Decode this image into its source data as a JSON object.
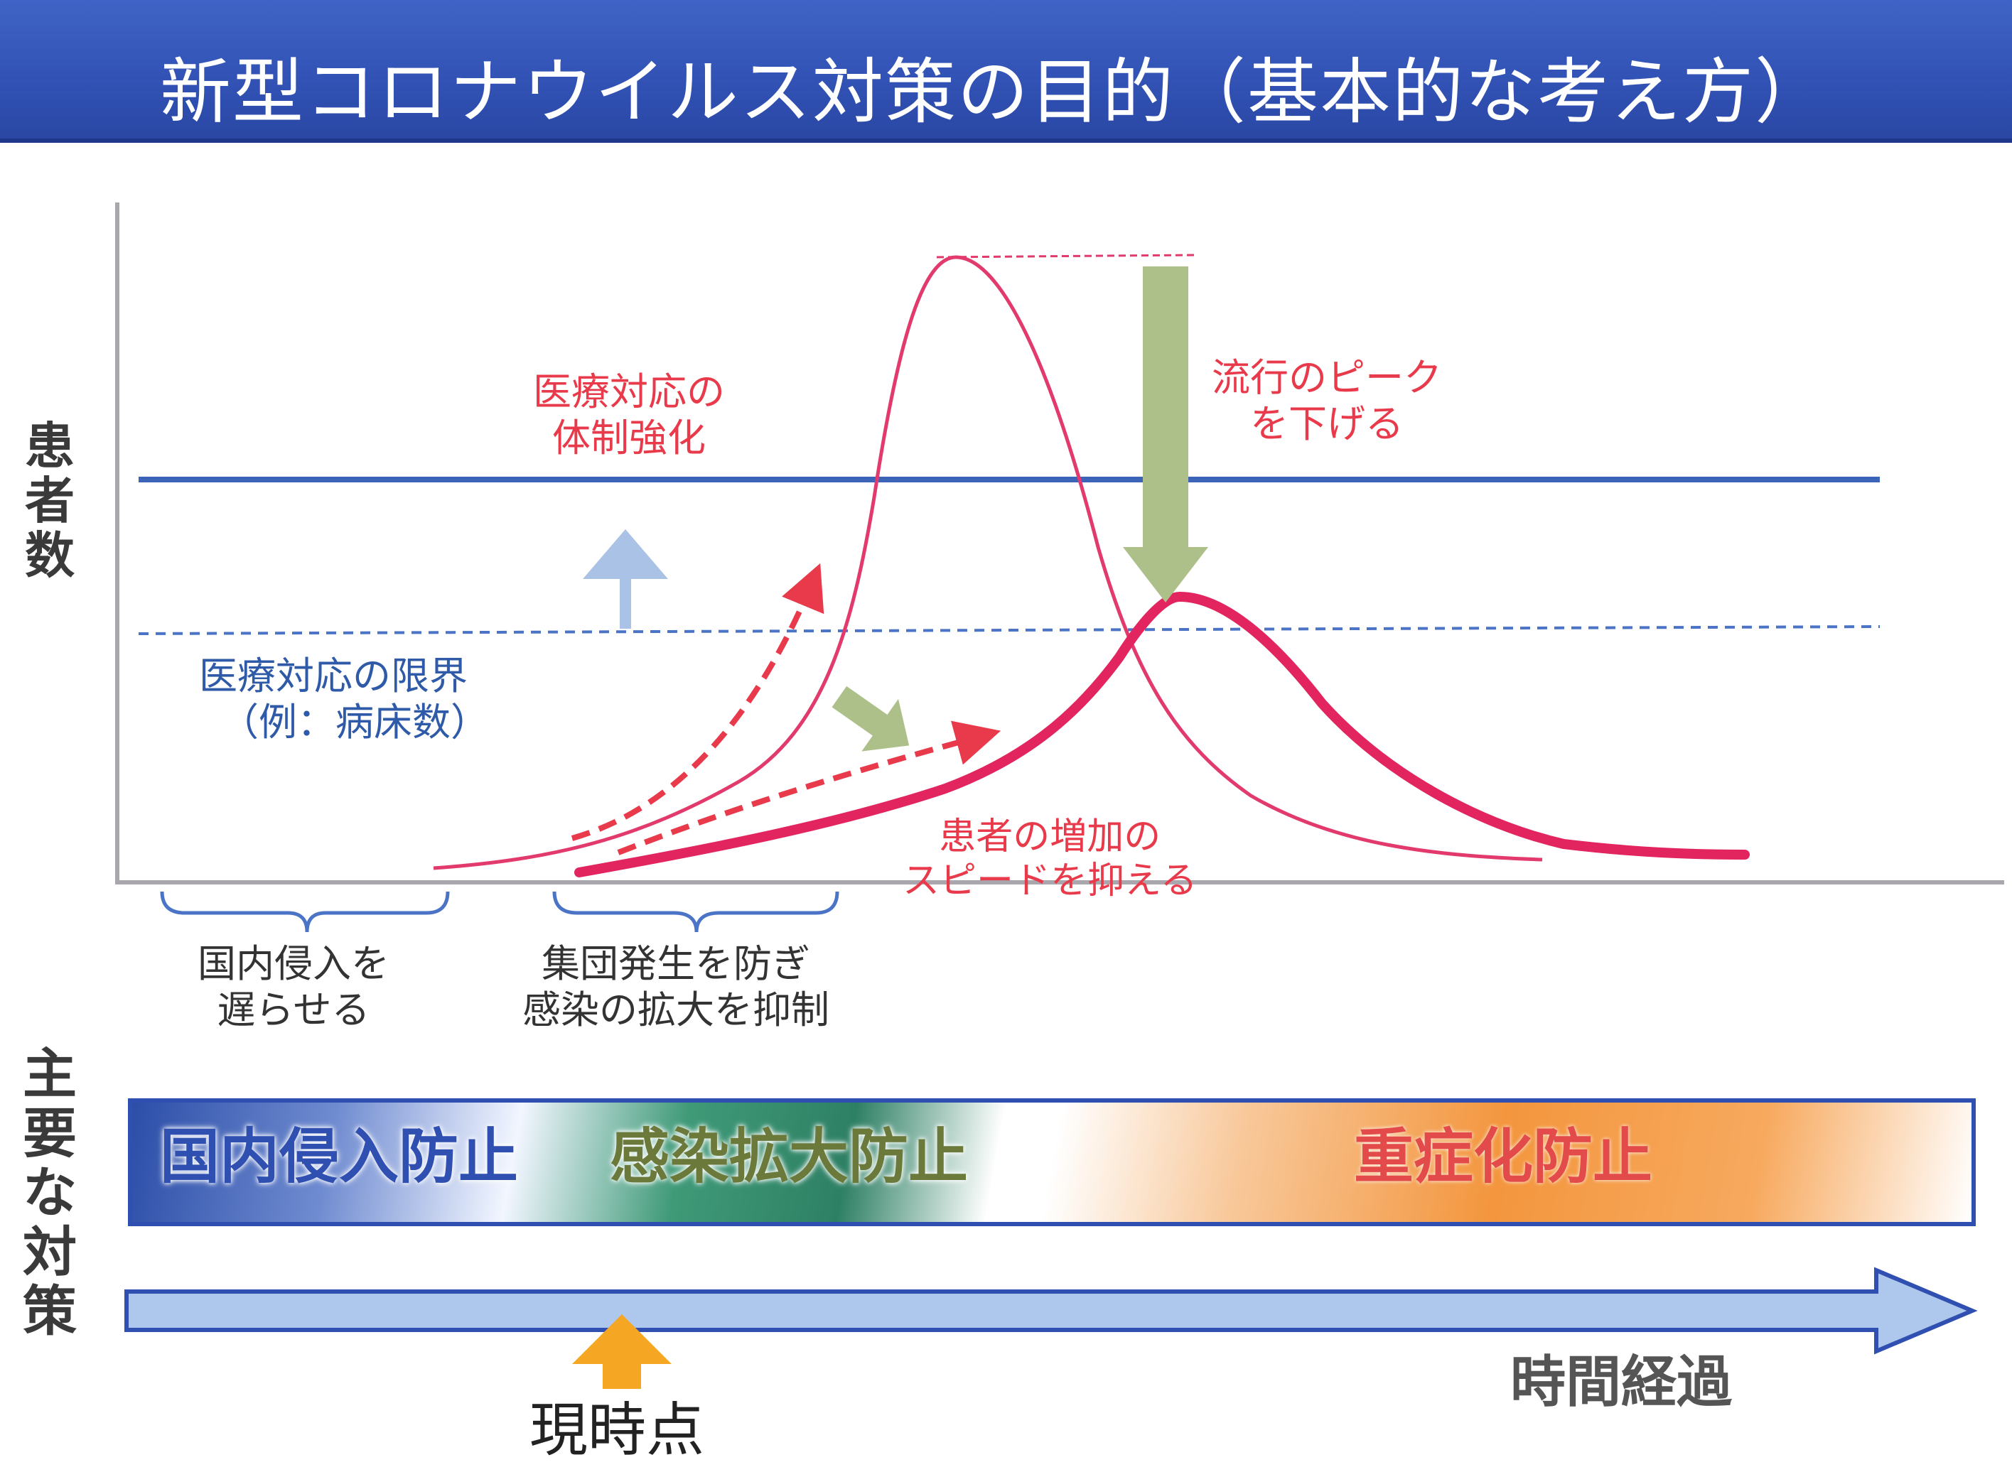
{
  "title": "新型コロナウイルス対策の目的（基本的な考え方）",
  "y_axis_label": [
    "患",
    "者",
    "数"
  ],
  "measures_label": [
    "主",
    "要",
    "な",
    "対",
    "策"
  ],
  "annotations": {
    "capacity_strengthening": [
      "医療対応の",
      "体制強化"
    ],
    "lower_peak": [
      "流行のピーク",
      "を下げる"
    ],
    "capacity_limit": [
      "医療対応の限界",
      "（例：病床数）"
    ],
    "slow_increase": [
      "患者の増加の",
      "スピードを抑える"
    ]
  },
  "phases": {
    "delay_entry": [
      "国内侵入を",
      "遅らせる"
    ],
    "prevent_clusters": [
      "集団発生を防ぎ",
      "感染の拡大を抑制"
    ]
  },
  "measures": {
    "block_entry": "国内侵入防止",
    "block_spread": "感染拡大防止",
    "block_severe": "重症化防止"
  },
  "timeline": {
    "time_label": "時間経過",
    "now_label": "現時点"
  },
  "colors": {
    "title_bar": "#2f4fb1",
    "uncontrolled_curve": "#e23a6c",
    "controlled_curve": "#e2245f",
    "capacity_line": "#3b63b8",
    "capacity_limit_line": "#4b74c6",
    "red_text": "#e83a4a",
    "blue_text": "#2f5aa8",
    "green_arrow": "#aec08a",
    "blue_arrow": "#a9c2e6",
    "timeline_fill": "#aec7ec",
    "now_arrow": "#f5a623",
    "measure_blue": "#2f4fb1",
    "measure_green": "#6b7a3a",
    "measure_red": "#e34b4b"
  }
}
